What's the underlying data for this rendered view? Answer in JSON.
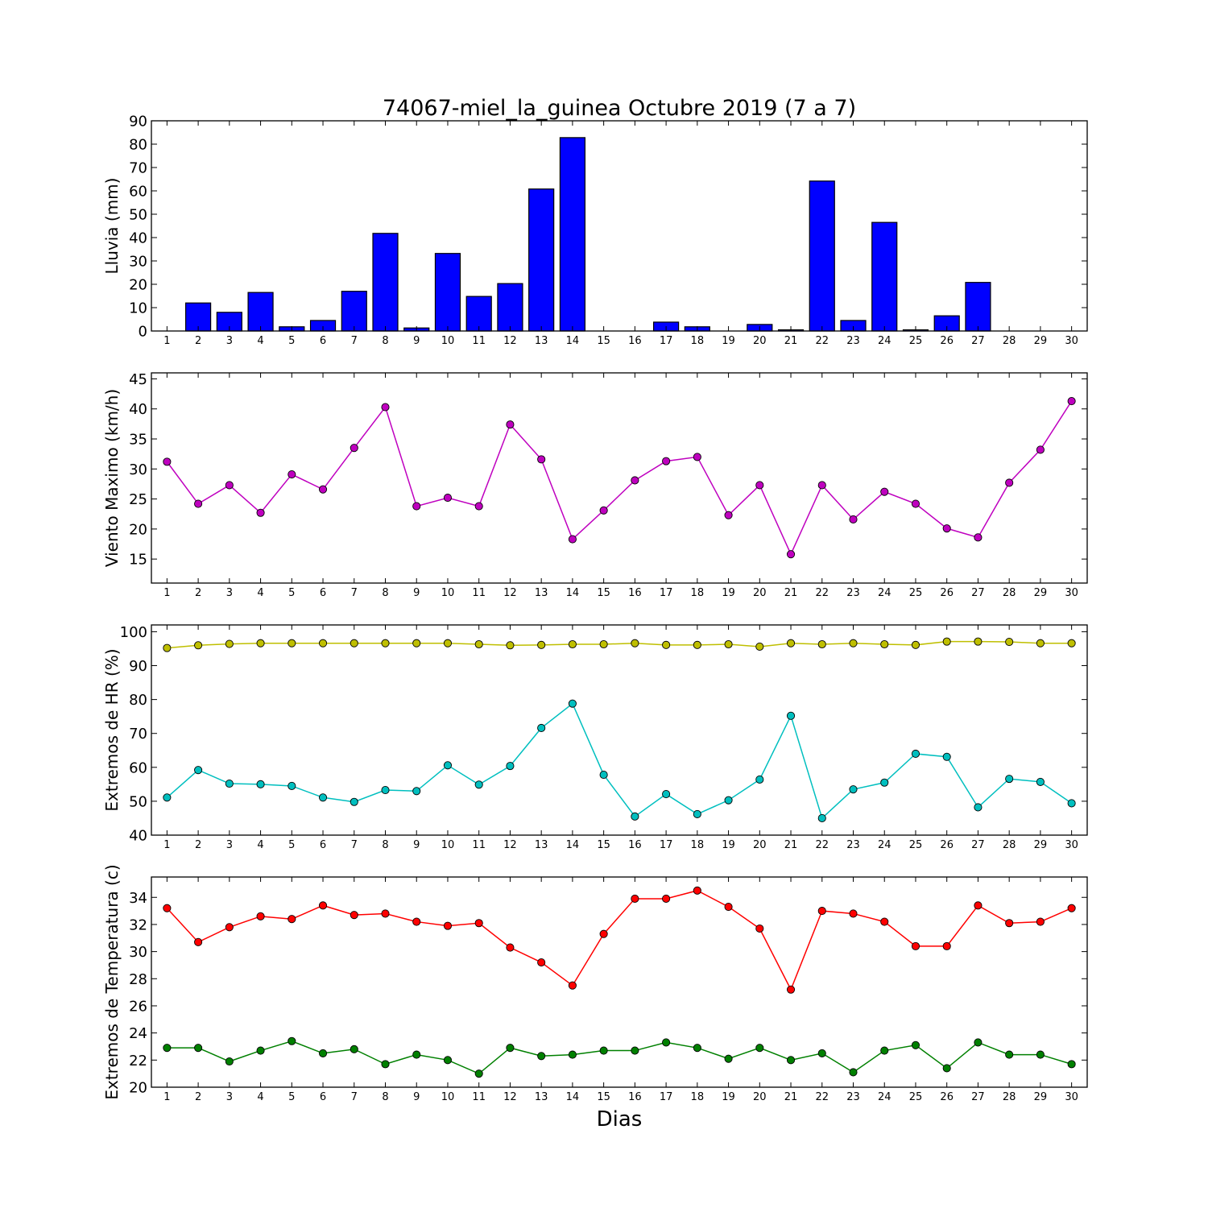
{
  "figure": {
    "title": "74067-miel_la_guinea Octubre 2019  (7 a 7)",
    "xlabel": "Dias"
  },
  "chart_data": [
    {
      "type": "bar",
      "ylabel": "Lluvia (mm)",
      "ylim": [
        0,
        90
      ],
      "yticks": [
        0,
        10,
        20,
        30,
        40,
        50,
        60,
        70,
        80,
        90
      ],
      "categories": [
        "1",
        "2",
        "3",
        "4",
        "5",
        "6",
        "7",
        "8",
        "9",
        "10",
        "11",
        "12",
        "13",
        "14",
        "15",
        "16",
        "17",
        "18",
        "19",
        "20",
        "21",
        "22",
        "23",
        "24",
        "25",
        "26",
        "27",
        "28",
        "29",
        "30"
      ],
      "values": [
        0,
        12,
        8,
        16.5,
        1.8,
        4.5,
        17,
        41.8,
        1.3,
        33.2,
        14.8,
        20.3,
        60.8,
        82.8,
        0,
        0,
        3.8,
        1.8,
        0,
        2.8,
        0.5,
        64.2,
        4.5,
        46.5,
        0.5,
        6.5,
        20.8,
        0,
        0,
        0
      ],
      "colors": {
        "bar": "#0000ff",
        "edge": "#000000"
      }
    },
    {
      "type": "line",
      "ylabel": "Viento Maximo (km/h)",
      "ylim": [
        11,
        46
      ],
      "yticks": [
        15,
        20,
        25,
        30,
        35,
        40,
        45
      ],
      "categories": [
        "1",
        "2",
        "3",
        "4",
        "5",
        "6",
        "7",
        "8",
        "9",
        "10",
        "11",
        "12",
        "13",
        "14",
        "15",
        "16",
        "17",
        "18",
        "19",
        "20",
        "21",
        "22",
        "23",
        "24",
        "25",
        "26",
        "27",
        "28",
        "29",
        "30"
      ],
      "series": [
        {
          "values": [
            31.2,
            24.2,
            27.3,
            22.7,
            29.1,
            26.6,
            33.5,
            40.3,
            23.8,
            25.2,
            23.8,
            37.4,
            31.6,
            18.3,
            23.1,
            28.1,
            31.3,
            32.0,
            22.3,
            27.3,
            15.8,
            27.3,
            21.6,
            26.2,
            24.2,
            20.1,
            18.6,
            27.7,
            33.2,
            41.3
          ],
          "color": "#bf00bf"
        }
      ]
    },
    {
      "type": "line",
      "ylabel": "Extremos de HR (%)",
      "ylim": [
        40,
        102
      ],
      "yticks": [
        40,
        50,
        60,
        70,
        80,
        90,
        100
      ],
      "categories": [
        "1",
        "2",
        "3",
        "4",
        "5",
        "6",
        "7",
        "8",
        "9",
        "10",
        "11",
        "12",
        "13",
        "14",
        "15",
        "16",
        "17",
        "18",
        "19",
        "20",
        "21",
        "22",
        "23",
        "24",
        "25",
        "26",
        "27",
        "28",
        "29",
        "30"
      ],
      "series": [
        {
          "values": [
            95.2,
            96.0,
            96.4,
            96.6,
            96.6,
            96.6,
            96.6,
            96.6,
            96.6,
            96.6,
            96.3,
            96.0,
            96.1,
            96.3,
            96.3,
            96.6,
            96.1,
            96.1,
            96.3,
            95.6,
            96.6,
            96.3,
            96.6,
            96.3,
            96.1,
            97.1,
            97.1,
            97.0,
            96.6,
            96.6
          ],
          "color": "#bfbf00"
        },
        {
          "values": [
            51.1,
            59.2,
            55.2,
            55.0,
            54.5,
            51.1,
            49.8,
            53.3,
            53.0,
            60.6,
            54.9,
            60.4,
            71.6,
            78.8,
            57.8,
            45.5,
            52.1,
            46.2,
            50.3,
            56.4,
            75.2,
            45.0,
            53.5,
            55.5,
            64.0,
            63.1,
            48.2,
            56.6,
            55.7,
            49.4
          ],
          "color": "#00bfbf"
        }
      ]
    },
    {
      "type": "line",
      "ylabel": "Extremos de Temperatura (c)",
      "ylim": [
        20,
        35.5
      ],
      "yticks": [
        20,
        22,
        24,
        26,
        28,
        30,
        32,
        34
      ],
      "categories": [
        "1",
        "2",
        "3",
        "4",
        "5",
        "6",
        "7",
        "8",
        "9",
        "10",
        "11",
        "12",
        "13",
        "14",
        "15",
        "16",
        "17",
        "18",
        "19",
        "20",
        "21",
        "22",
        "23",
        "24",
        "25",
        "26",
        "27",
        "28",
        "29",
        "30"
      ],
      "series": [
        {
          "values": [
            33.2,
            30.7,
            31.8,
            32.6,
            32.4,
            33.4,
            32.7,
            32.8,
            32.2,
            31.9,
            32.1,
            30.3,
            29.2,
            27.5,
            31.3,
            33.9,
            33.9,
            34.5,
            33.3,
            31.7,
            27.2,
            33.0,
            32.8,
            32.2,
            30.4,
            30.4,
            33.4,
            32.1,
            32.2,
            33.2
          ],
          "color": "#ff0000"
        },
        {
          "values": [
            22.9,
            22.9,
            21.9,
            22.7,
            23.4,
            22.5,
            22.8,
            21.7,
            22.4,
            22.0,
            21.0,
            22.9,
            22.3,
            22.4,
            22.7,
            22.7,
            23.3,
            22.9,
            22.1,
            22.9,
            22.0,
            22.5,
            21.1,
            22.7,
            23.1,
            21.4,
            23.3,
            22.4,
            22.4,
            21.7
          ],
          "color": "#008000"
        }
      ]
    }
  ]
}
